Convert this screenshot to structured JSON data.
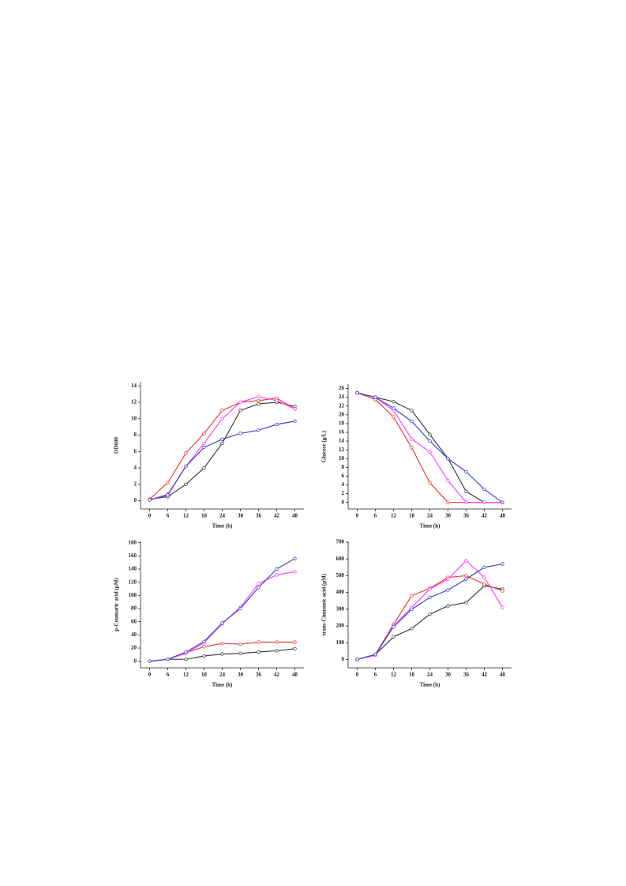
{
  "chart_data": [
    {
      "type": "line",
      "ylabel": "OD600",
      "xlabel": "Time (h)",
      "x": [
        0,
        6,
        12,
        18,
        24,
        30,
        36,
        42,
        48
      ],
      "xlim": [
        -3,
        51
      ],
      "xticks": [
        0,
        6,
        12,
        18,
        24,
        30,
        36,
        42,
        48
      ],
      "ylim": [
        -1,
        14.5
      ],
      "yticks": [
        0,
        2,
        4,
        6,
        8,
        10,
        12,
        14
      ],
      "series": [
        {
          "color": "#404040",
          "values": [
            0.2,
            0.5,
            2,
            4,
            7,
            11,
            11.8,
            12,
            11.5
          ]
        },
        {
          "color": "#e8413c",
          "values": [
            0.2,
            2.2,
            5.8,
            8.2,
            11,
            12,
            12.2,
            12.5,
            11.2
          ]
        },
        {
          "color": "#ff44ff",
          "values": [
            0.1,
            0.8,
            4.2,
            7,
            10,
            12,
            12.7,
            12.2,
            11.2
          ]
        },
        {
          "color": "#3f48cc",
          "values": [
            0.1,
            0.7,
            4.2,
            6.5,
            7.5,
            8.2,
            8.6,
            9.3,
            9.7
          ]
        }
      ]
    },
    {
      "type": "line",
      "ylabel": "Glucose (g/L)",
      "xlabel": "Time (h)",
      "x": [
        0,
        6,
        12,
        18,
        24,
        30,
        36,
        42,
        48
      ],
      "xlim": [
        -3,
        51
      ],
      "xticks": [
        0,
        6,
        12,
        18,
        24,
        30,
        36,
        42,
        48
      ],
      "ylim": [
        -1.5,
        27
      ],
      "yticks": [
        0,
        2,
        4,
        6,
        8,
        10,
        12,
        14,
        16,
        18,
        20,
        22,
        24,
        26
      ],
      "series": [
        {
          "color": "#404040",
          "values": [
            25,
            24,
            23,
            21,
            15.5,
            10,
            2.5,
            0,
            0
          ]
        },
        {
          "color": "#e8413c",
          "values": [
            25,
            23.5,
            19.5,
            12.5,
            4.5,
            0,
            0,
            0,
            0
          ]
        },
        {
          "color": "#ff44ff",
          "values": [
            25,
            24,
            21,
            14.5,
            11.5,
            5,
            0,
            0,
            0
          ]
        },
        {
          "color": "#3f48cc",
          "values": [
            25,
            24,
            21.5,
            18.5,
            14,
            10,
            7,
            3,
            0
          ]
        }
      ]
    },
    {
      "type": "line",
      "ylabel": "p-Coumaric acid (μM)",
      "xlabel": "Time (h)",
      "x": [
        0,
        6,
        12,
        18,
        24,
        30,
        36,
        42,
        48
      ],
      "xlim": [
        -3,
        51
      ],
      "xticks": [
        0,
        6,
        12,
        18,
        24,
        30,
        36,
        42,
        48
      ],
      "ylim": [
        -10,
        182
      ],
      "yticks": [
        0,
        20,
        40,
        60,
        80,
        100,
        120,
        140,
        160,
        180
      ],
      "series": [
        {
          "color": "#404040",
          "values": [
            0,
            3,
            3,
            8,
            11,
            12,
            14,
            16,
            19
          ]
        },
        {
          "color": "#e8413c",
          "values": [
            0,
            3,
            13,
            22,
            27,
            26,
            29,
            29,
            29
          ]
        },
        {
          "color": "#ff44ff",
          "values": [
            0,
            3,
            12,
            28,
            57,
            82,
            118,
            131,
            136
          ]
        },
        {
          "color": "#3f48cc",
          "values": [
            0,
            3,
            14,
            30,
            58,
            80,
            112,
            140,
            156
          ]
        }
      ]
    },
    {
      "type": "line",
      "ylabel": "trans-Cinnamic acid (μM)",
      "xlabel": "Time (h)",
      "x": [
        0,
        6,
        12,
        18,
        24,
        30,
        36,
        42,
        48
      ],
      "xlim": [
        -3,
        51
      ],
      "xticks": [
        0,
        6,
        12,
        18,
        24,
        30,
        36,
        42,
        48
      ],
      "ylim": [
        -50,
        705
      ],
      "yticks": [
        0,
        100,
        200,
        300,
        400,
        500,
        600,
        700
      ],
      "series": [
        {
          "color": "#404040",
          "values": [
            0,
            30,
            135,
            185,
            270,
            320,
            340,
            440,
            420
          ]
        },
        {
          "color": "#e8413c",
          "values": [
            0,
            30,
            210,
            380,
            425,
            490,
            500,
            450,
            410
          ]
        },
        {
          "color": "#ff44ff",
          "values": [
            0,
            25,
            200,
            310,
            420,
            480,
            590,
            490,
            310
          ]
        },
        {
          "color": "#3f48cc",
          "values": [
            0,
            30,
            195,
            300,
            370,
            415,
            480,
            550,
            570
          ]
        }
      ]
    }
  ]
}
